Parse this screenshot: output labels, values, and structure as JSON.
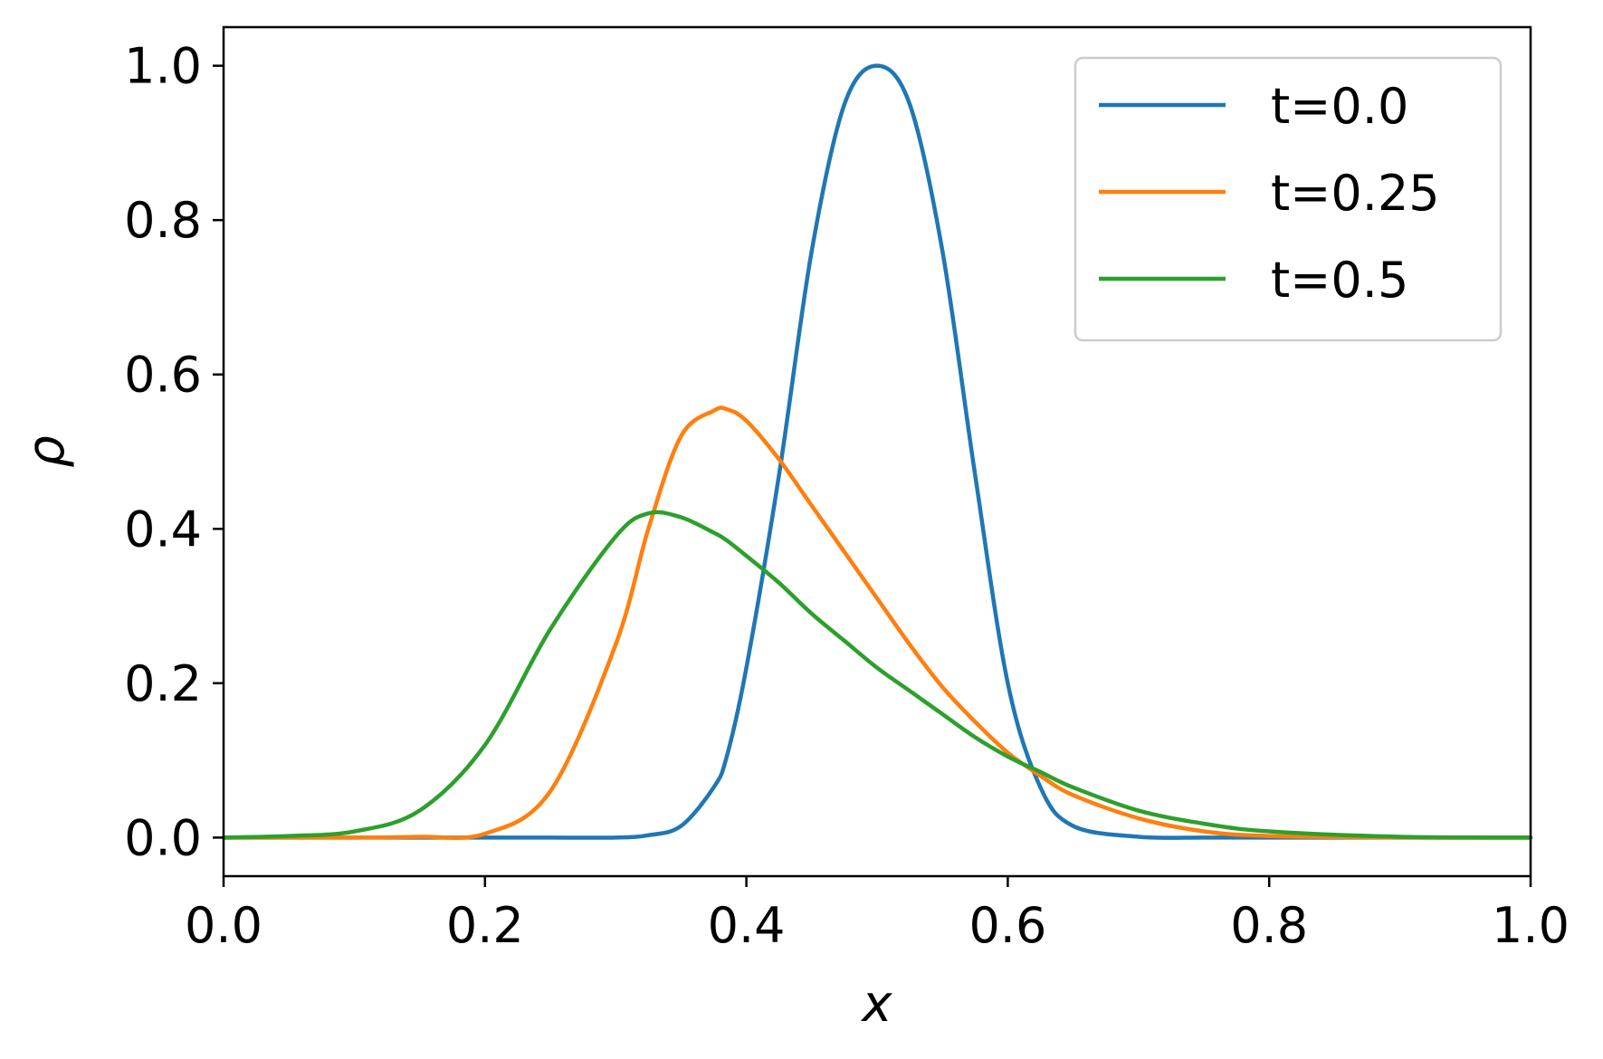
{
  "chart_data": {
    "type": "line",
    "title": "",
    "xlabel": "x",
    "ylabel": "ρ",
    "xlim": [
      0.0,
      1.0
    ],
    "ylim": [
      -0.05,
      1.05
    ],
    "grid": false,
    "legend_position": "top-right",
    "x_ticks": [
      0.0,
      0.2,
      0.4,
      0.6,
      0.8,
      1.0
    ],
    "x_tick_labels": [
      "0.0",
      "0.2",
      "0.4",
      "0.6",
      "0.8",
      "1.0"
    ],
    "y_ticks": [
      0.0,
      0.2,
      0.4,
      0.6,
      0.8,
      1.0
    ],
    "y_tick_labels": [
      "0.0",
      "0.2",
      "0.4",
      "0.6",
      "0.8",
      "1.0"
    ],
    "x": [
      0.0,
      0.05,
      0.1,
      0.15,
      0.2,
      0.25,
      0.3,
      0.325,
      0.35,
      0.375,
      0.385,
      0.4,
      0.425,
      0.45,
      0.475,
      0.5,
      0.525,
      0.55,
      0.575,
      0.6,
      0.625,
      0.65,
      0.7,
      0.75,
      0.8,
      0.9,
      1.0
    ],
    "series": [
      {
        "name": "t=0.0",
        "color": "#1f77b4",
        "values": [
          0.0,
          0.0,
          0.0,
          0.0,
          0.0,
          0.0,
          0.0,
          0.003,
          0.015,
          0.065,
          0.105,
          0.22,
          0.47,
          0.76,
          0.95,
          1.0,
          0.95,
          0.76,
          0.47,
          0.2,
          0.065,
          0.015,
          0.001,
          0.0,
          0.0,
          0.0,
          0.0
        ]
      },
      {
        "name": "t=0.25",
        "color": "#ff7f0e",
        "values": [
          0.0,
          0.0,
          0.0,
          0.001,
          0.005,
          0.06,
          0.25,
          0.4,
          0.52,
          0.553,
          0.555,
          0.54,
          0.49,
          0.43,
          0.37,
          0.31,
          0.25,
          0.195,
          0.15,
          0.11,
          0.08,
          0.055,
          0.025,
          0.008,
          0.002,
          0.0,
          0.0
        ]
      },
      {
        "name": "t=0.5",
        "color": "#2ca02c",
        "values": [
          0.0,
          0.002,
          0.008,
          0.035,
          0.12,
          0.27,
          0.39,
          0.42,
          0.415,
          0.395,
          0.385,
          0.365,
          0.33,
          0.29,
          0.255,
          0.22,
          0.19,
          0.16,
          0.13,
          0.105,
          0.085,
          0.065,
          0.035,
          0.018,
          0.008,
          0.001,
          0.0
        ]
      }
    ]
  }
}
